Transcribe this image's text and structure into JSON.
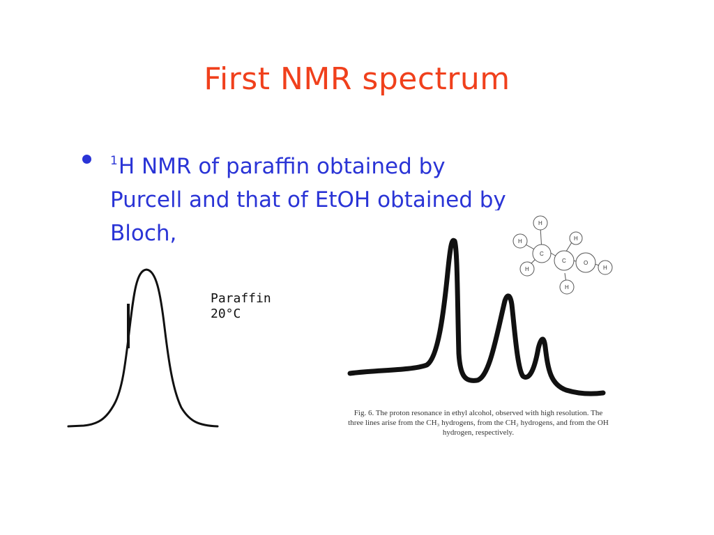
{
  "slide": {
    "title": "First NMR spectrum",
    "bullet": {
      "sup": "1",
      "line1": "H NMR of paraffin obtained by",
      "line2": "Purcell and that of EtOH obtained by",
      "line3": "Bloch,"
    }
  },
  "figure_left": {
    "label_line1": "Paraffin",
    "label_line2": "20°C"
  },
  "figure_right": {
    "molecule_labels": {
      "h": "H",
      "c": "C",
      "o": "O"
    },
    "caption": {
      "line1": "Fig. 6. The proton resonance in ethyl alcohol, observed with high resolution. The",
      "line2": "three lines arise from the CH₃ hydrogens, from the CH₂ hydrogens, and from the OH",
      "line3": "hydrogen,   respectively."
    }
  },
  "colors": {
    "title": "#f0401c",
    "bullet_text": "#2a34d6",
    "bullet_dot": "#2a34d6",
    "ink": "#111111"
  }
}
